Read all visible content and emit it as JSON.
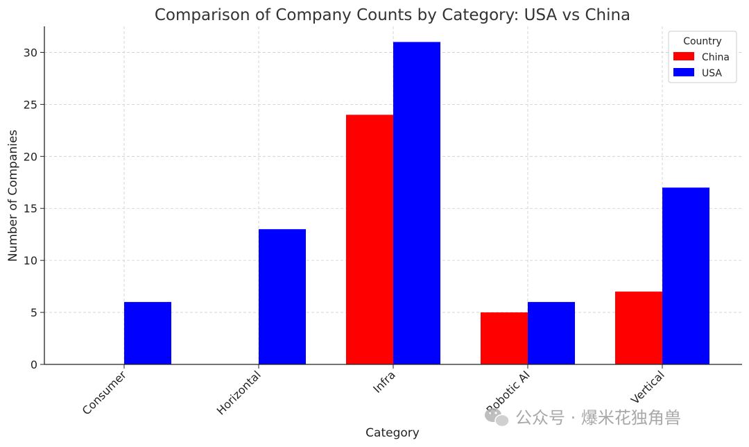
{
  "chart_data": {
    "type": "bar",
    "title": "Comparison of Company Counts by Category: USA vs China",
    "xlabel": "Category",
    "ylabel": "Number of Companies",
    "categories": [
      "Consumer",
      "Horizontal",
      "Infra",
      "Robotic AI",
      "Vertical"
    ],
    "series": [
      {
        "name": "China",
        "color": "#ff0000",
        "values": [
          0,
          0,
          24,
          5,
          7
        ]
      },
      {
        "name": "USA",
        "color": "#0000ff",
        "values": [
          6,
          13,
          31,
          6,
          17
        ]
      }
    ],
    "ylim": [
      0,
      32.5
    ],
    "yticks": [
      0,
      5,
      10,
      15,
      20,
      25,
      30
    ],
    "grid": true,
    "legend": {
      "title": "Country",
      "placement": "top-right"
    }
  },
  "watermark": {
    "text": "公众号 · 爆米花独角兽",
    "icon": "wechat-icon"
  }
}
